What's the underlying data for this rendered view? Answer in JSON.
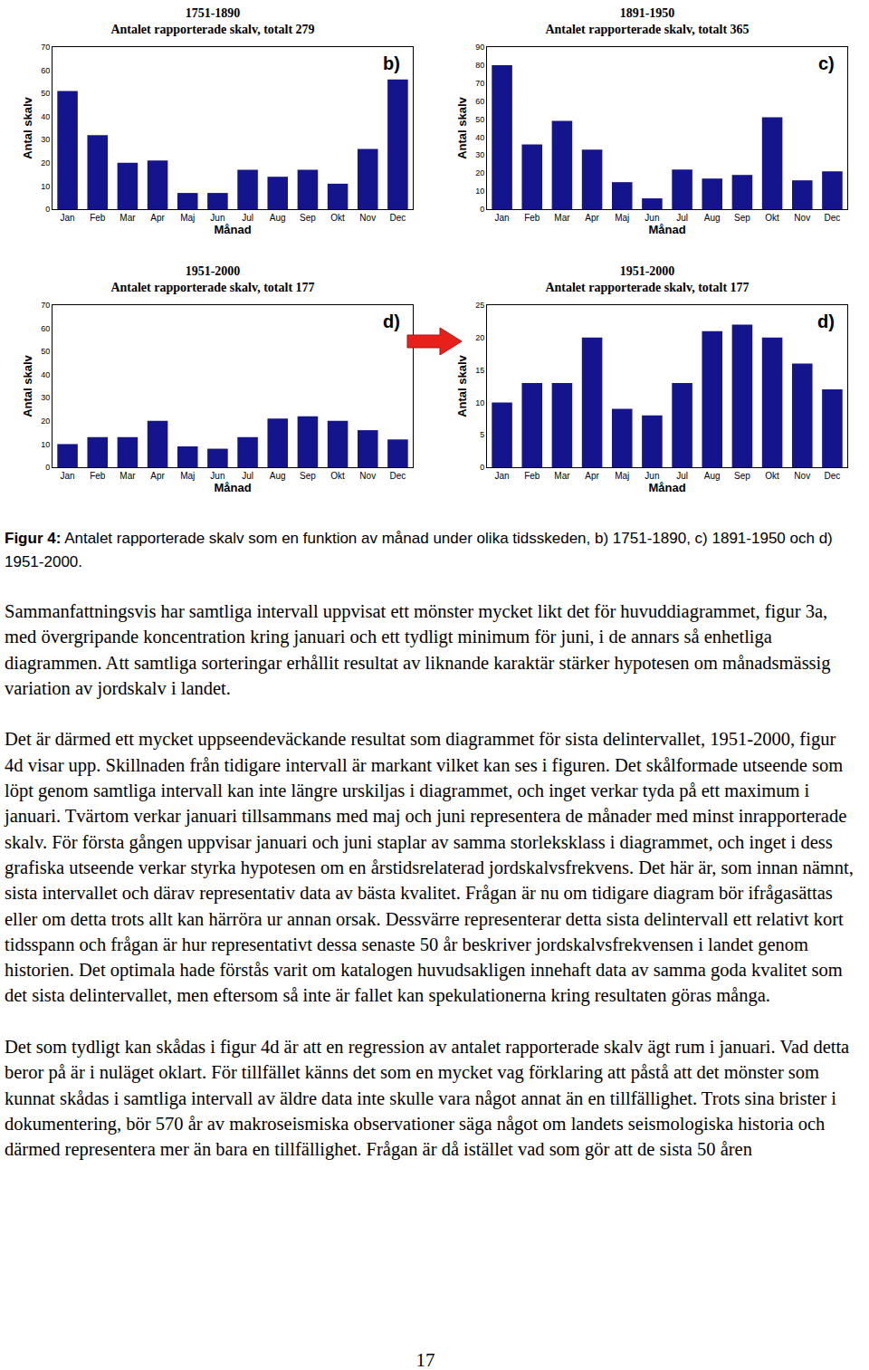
{
  "chart_data": [
    {
      "type": "bar",
      "title": "1751-1890",
      "subtitle": "Antalet rapporterade skalv, totalt 279",
      "annotations": [
        "b)"
      ],
      "x_label": "Månad",
      "y_label": "Antal skalv",
      "categories": [
        "Jan",
        "Feb",
        "Mar",
        "Apr",
        "Maj",
        "Jun",
        "Jul",
        "Aug",
        "Sep",
        "Okt",
        "Nov",
        "Dec"
      ],
      "values": [
        51,
        32,
        20,
        21,
        7,
        7,
        17,
        14,
        17,
        11,
        26,
        56
      ],
      "color": "#14148c",
      "ylim": [
        0,
        70
      ],
      "yticks": [
        0,
        10,
        20,
        30,
        40,
        50,
        60,
        70
      ],
      "grid": false
    },
    {
      "type": "bar",
      "title": "1891-1950",
      "subtitle": "Antalet rapporterade skalv, totalt 365",
      "annotations": [
        "c)"
      ],
      "x_label": "Månad",
      "y_label": "Antal skalv",
      "categories": [
        "Jan",
        "Feb",
        "Mar",
        "Apr",
        "Maj",
        "Jun",
        "Jul",
        "Aug",
        "Sep",
        "Okt",
        "Nov",
        "Dec"
      ],
      "values": [
        80,
        36,
        49,
        33,
        15,
        6,
        22,
        17,
        19,
        51,
        16,
        21
      ],
      "color": "#14148c",
      "ylim": [
        0,
        90
      ],
      "yticks": [
        0,
        10,
        20,
        30,
        40,
        50,
        60,
        70,
        80,
        90
      ],
      "grid": false
    },
    {
      "type": "bar",
      "title": "1951-2000",
      "subtitle": "Antalet rapporterade skalv, totalt 177",
      "annotations": [
        "d)"
      ],
      "x_label": "Månad",
      "y_label": "Antal skalv",
      "categories": [
        "Jan",
        "Feb",
        "Mar",
        "Apr",
        "Maj",
        "Jun",
        "Jul",
        "Aug",
        "Sep",
        "Okt",
        "Nov",
        "Dec"
      ],
      "values": [
        10,
        13,
        13,
        20,
        9,
        8,
        13,
        21,
        22,
        20,
        16,
        12
      ],
      "color": "#14148c",
      "ylim": [
        0,
        70
      ],
      "yticks": [
        0,
        10,
        20,
        30,
        40,
        50,
        60,
        70
      ],
      "grid": false
    },
    {
      "type": "bar",
      "title": "1951-2000",
      "subtitle": "Antalet rapporterade skalv, totalt 177",
      "annotations": [
        "d)"
      ],
      "x_label": "Månad",
      "y_label": "Antal skalv",
      "categories": [
        "Jan",
        "Feb",
        "Mar",
        "Apr",
        "Maj",
        "Jun",
        "Jul",
        "Aug",
        "Sep",
        "Okt",
        "Nov",
        "Dec"
      ],
      "values": [
        10,
        13,
        13,
        20,
        9,
        8,
        13,
        21,
        22,
        20,
        16,
        12
      ],
      "color": "#14148c",
      "ylim": [
        0,
        25
      ],
      "yticks": [
        0,
        5,
        10,
        15,
        20,
        25
      ],
      "grid": false
    }
  ],
  "caption": {
    "label": "Figur 4:",
    "text": "Antalet rapporterade skalv som en funktion av månad under olika tidsskeden, b) 1751-1890, c) 1891-1950 och d) 1951-2000."
  },
  "paragraphs": [
    "Sammanfattningsvis har samtliga intervall uppvisat ett mönster mycket likt det för huvuddiagrammet, figur 3a, med övergripande koncentration kring januari och ett tydligt minimum för juni, i de annars så enhetliga diagrammen. Att samtliga sorteringar erhållit resultat av liknande karaktär stärker hypotesen om månadsmässig variation av jordskalv i landet.",
    "Det är därmed ett mycket uppseendeväckande resultat som diagrammet för sista delintervallet, 1951-2000, figur 4d visar upp. Skillnaden från tidigare intervall är markant vilket kan ses i figuren. Det skålformade utseende som löpt genom samtliga intervall kan inte längre urskiljas i diagrammet, och inget verkar tyda på ett maximum i januari. Tvärtom verkar januari tillsammans med maj och juni representera de månader med minst inrapporterade skalv. För första gången uppvisar januari och juni staplar av samma storleksklass i diagrammet, och inget i dess grafiska utseende verkar styrka hypotesen om en årstidsrelaterad jordskalvsfrekvens. Det här är, som innan nämnt, sista intervallet och därav representativ data av bästa kvalitet. Frågan är nu om tidigare diagram bör ifrågasättas eller om detta trots allt kan härröra ur annan orsak. Dessvärre representerar detta sista delintervall ett relativt kort tidsspann och frågan är hur representativt dessa senaste 50 år beskriver jordskalvsfrekvensen i landet genom historien. Det optimala hade förstås varit om katalogen huvudsakligen innehaft data av samma goda kvalitet som det sista delintervallet, men eftersom så inte är fallet kan spekulationerna kring resultaten göras många.",
    "Det som tydligt kan skådas i figur 4d är att en regression av antalet rapporterade skalv ägt rum i januari. Vad detta beror på är i nuläget oklart. För tillfället känns det som en mycket vag förklaring att påstå att det mönster som kunnat skådas i samtliga intervall av äldre data inte skulle vara något annat än en tillfällighet. Trots sina brister i dokumentering, bör 570 år av makroseismiska observationer säga något om landets seismologiska historia och därmed representera mer än bara en tillfällighet. Frågan är då istället vad som gör att de sista 50 åren"
  ],
  "page_number": "17"
}
